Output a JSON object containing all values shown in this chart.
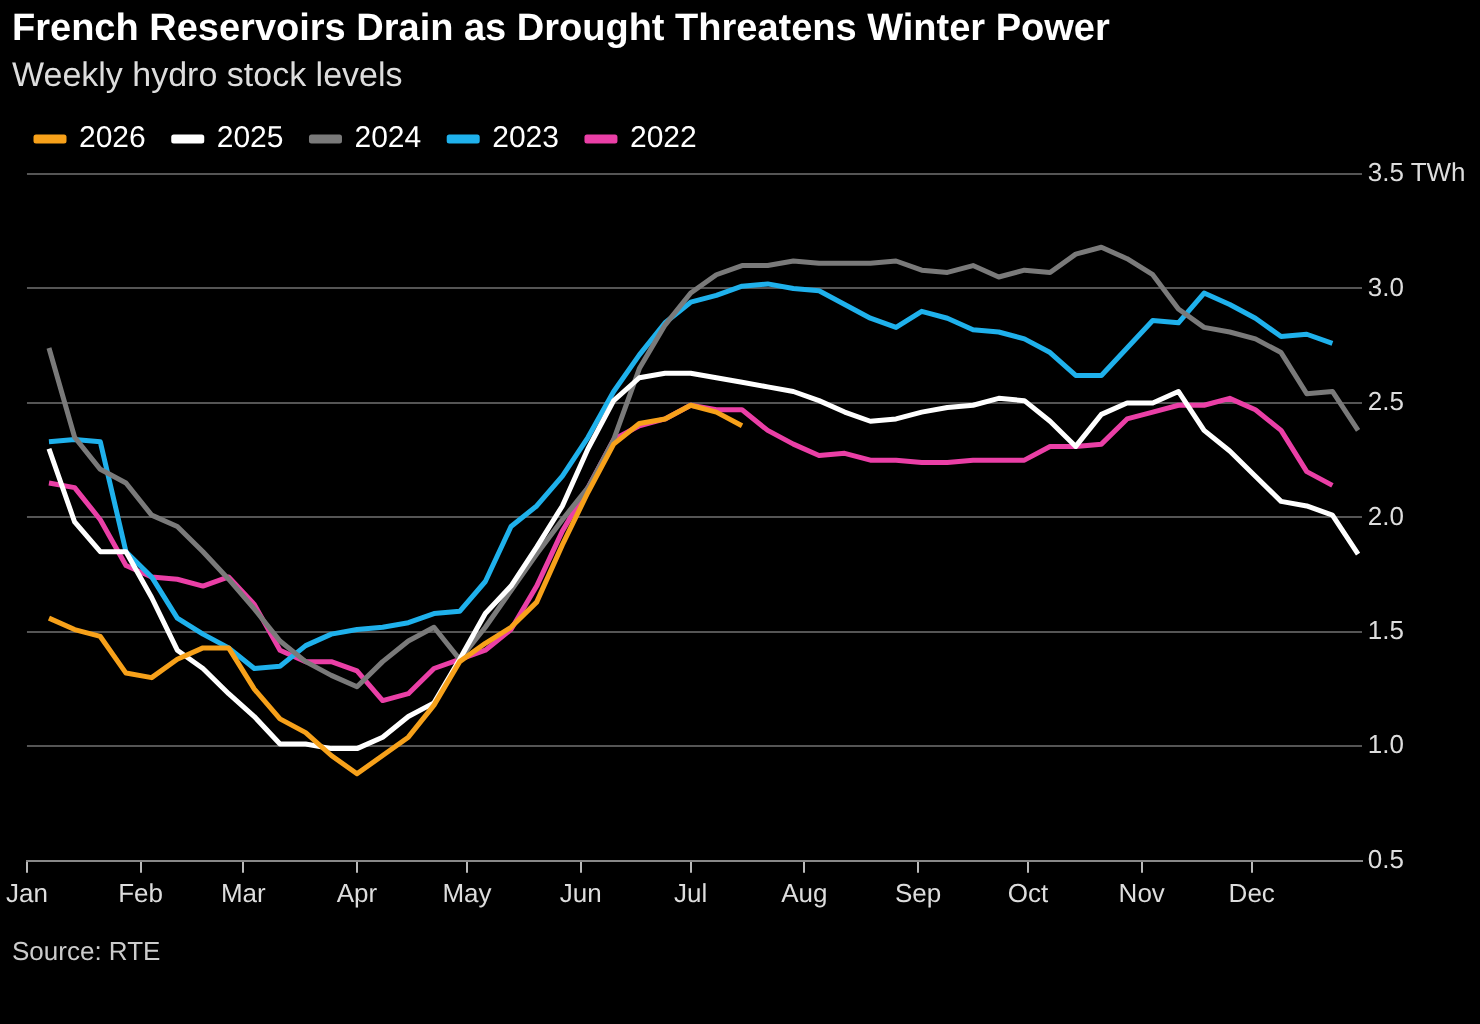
{
  "chart_data": {
    "type": "line",
    "title": "French Reservoirs Drain as Drought Threatens Winter Power",
    "subtitle": "Weekly hydro stock levels",
    "annotations": [
      "Source: RTE"
    ],
    "x": [
      "--01-07",
      "--01-14",
      "--01-21",
      "--01-28",
      "--02-04",
      "--02-11",
      "--02-18",
      "--02-25",
      "--03-04",
      "--03-11",
      "--03-18",
      "--03-25",
      "--04-01",
      "--04-08",
      "--04-15",
      "--04-22",
      "--04-29",
      "--05-06",
      "--05-13",
      "--05-20",
      "--05-27",
      "--06-03",
      "--06-10",
      "--06-17",
      "--06-24",
      "--07-01",
      "--07-08",
      "--07-15",
      "--07-22",
      "--07-29",
      "--08-05",
      "--08-12",
      "--08-19",
      "--08-26",
      "--09-02",
      "--09-09",
      "--09-16",
      "--09-23",
      "--09-30",
      "--10-07",
      "--10-14",
      "--10-21",
      "--10-28",
      "--11-04",
      "--11-11",
      "--11-18",
      "--11-25",
      "--12-02",
      "--12-09",
      "--12-16",
      "--12-23",
      "--12-30"
    ],
    "xlim": [
      "--01-01",
      "--12-31"
    ],
    "xticks": [
      {
        "value": "--01-01",
        "label": "Jan"
      },
      {
        "value": "--02-01",
        "label": "Feb"
      },
      {
        "value": "--03-01",
        "label": "Mar"
      },
      {
        "value": "--04-01",
        "label": "Apr"
      },
      {
        "value": "--05-01",
        "label": "May"
      },
      {
        "value": "--06-01",
        "label": "Jun"
      },
      {
        "value": "--07-01",
        "label": "Jul"
      },
      {
        "value": "--08-01",
        "label": "Aug"
      },
      {
        "value": "--09-01",
        "label": "Sep"
      },
      {
        "value": "--10-01",
        "label": "Oct"
      },
      {
        "value": "--11-01",
        "label": "Nov"
      },
      {
        "value": "--12-01",
        "label": "Dec"
      }
    ],
    "ylim": [
      0.5,
      3.5
    ],
    "yticks": [
      {
        "value": 0.5,
        "label": "0.5"
      },
      {
        "value": 1,
        "label": "1.0"
      },
      {
        "value": 1.5,
        "label": "1.5"
      },
      {
        "value": 2,
        "label": "2.0"
      },
      {
        "value": 2.5,
        "label": "2.5"
      },
      {
        "value": 3,
        "label": "3.0"
      },
      {
        "value": 3.5,
        "label": "3.5 TWh"
      }
    ],
    "grid": "y",
    "legend": "top left",
    "line_style": "solid",
    "marker": "none",
    "series": [
      {
        "name": "2026",
        "color": "#f7a11a",
        "values": [
          1.56,
          1.51,
          1.48,
          1.32,
          1.3,
          1.38,
          1.43,
          1.43,
          1.25,
          1.12,
          1.06,
          0.96,
          0.88,
          0.96,
          1.04,
          1.18,
          1.37,
          1.45,
          1.52,
          1.63,
          1.88,
          2.11,
          2.32,
          2.41,
          2.43,
          2.49,
          2.46,
          2.4,
          null,
          null,
          null,
          null,
          null,
          null,
          null,
          null,
          null,
          null,
          null,
          null,
          null,
          null,
          null,
          null,
          null,
          null,
          null,
          null,
          null,
          null,
          null,
          null
        ]
      },
      {
        "name": "2025",
        "color": "#ffffff",
        "values": [
          2.3,
          1.98,
          1.85,
          1.85,
          1.65,
          1.42,
          1.34,
          1.23,
          1.13,
          1.01,
          1.01,
          0.99,
          0.99,
          1.04,
          1.13,
          1.19,
          1.38,
          1.58,
          1.7,
          1.87,
          2.05,
          2.3,
          2.51,
          2.61,
          2.63,
          2.63,
          2.61,
          2.59,
          2.57,
          2.55,
          2.51,
          2.46,
          2.42,
          2.43,
          2.46,
          2.48,
          2.49,
          2.52,
          2.51,
          2.42,
          2.31,
          2.45,
          2.5,
          2.5,
          2.55,
          2.38,
          2.29,
          2.18,
          2.07,
          2.05,
          2.01,
          1.84
        ]
      },
      {
        "name": "2024",
        "color": "#7a7a7a",
        "values": [
          2.74,
          2.35,
          2.21,
          2.15,
          2.01,
          1.96,
          1.85,
          1.73,
          1.6,
          1.46,
          1.37,
          1.31,
          1.26,
          1.37,
          1.46,
          1.52,
          1.38,
          1.52,
          1.68,
          1.84,
          1.99,
          2.13,
          2.34,
          2.65,
          2.84,
          2.98,
          3.06,
          3.1,
          3.1,
          3.12,
          3.11,
          3.11,
          3.11,
          3.12,
          3.08,
          3.07,
          3.1,
          3.05,
          3.08,
          3.07,
          3.15,
          3.18,
          3.13,
          3.06,
          2.91,
          2.83,
          2.81,
          2.78,
          2.72,
          2.54,
          2.55,
          2.38
        ]
      },
      {
        "name": "2023",
        "color": "#1fb1ec",
        "values": [
          2.33,
          2.34,
          2.33,
          1.85,
          1.74,
          1.56,
          1.49,
          1.43,
          1.34,
          1.35,
          1.44,
          1.49,
          1.51,
          1.52,
          1.54,
          1.58,
          1.59,
          1.72,
          1.96,
          2.05,
          2.18,
          2.35,
          2.55,
          2.71,
          2.85,
          2.94,
          2.97,
          3.01,
          3.02,
          3.0,
          2.99,
          2.93,
          2.87,
          2.83,
          2.9,
          2.87,
          2.82,
          2.81,
          2.78,
          2.72,
          2.62,
          2.62,
          2.74,
          2.86,
          2.85,
          2.98,
          2.93,
          2.87,
          2.79,
          2.8,
          2.76,
          null
        ]
      },
      {
        "name": "2022",
        "color": "#ea3fa6",
        "values": [
          2.15,
          2.13,
          1.99,
          1.79,
          1.74,
          1.73,
          1.7,
          1.74,
          1.62,
          1.42,
          1.37,
          1.37,
          1.33,
          1.2,
          1.23,
          1.34,
          1.38,
          1.42,
          1.51,
          1.7,
          1.94,
          2.13,
          2.34,
          2.4,
          2.43,
          2.49,
          2.47,
          2.47,
          2.38,
          2.32,
          2.27,
          2.28,
          2.25,
          2.25,
          2.24,
          2.24,
          2.25,
          2.25,
          2.25,
          2.31,
          2.31,
          2.32,
          2.43,
          2.46,
          2.49,
          2.49,
          2.52,
          2.47,
          2.38,
          2.2,
          2.14,
          null
        ]
      }
    ]
  }
}
